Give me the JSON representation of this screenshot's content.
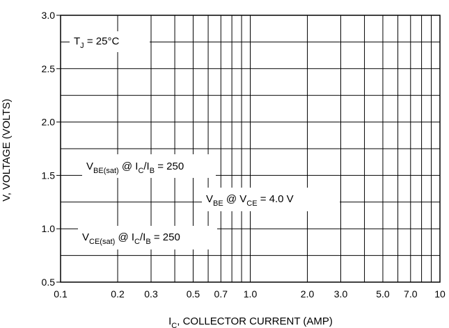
{
  "chart_data": {
    "type": "line",
    "title": "",
    "xscale": "log",
    "xlim": [
      0.1,
      10
    ],
    "ylim": [
      0.5,
      3.0
    ],
    "grid": true,
    "xlabel": {
      "main": "I",
      "sub": "C",
      "rest": ", COLLECTOR CURRENT (AMP)"
    },
    "ylabel": "V, VOLTAGE (VOLTS)",
    "x_tick_labels": [
      {
        "v": 0.1,
        "t": "0.1"
      },
      {
        "v": 0.2,
        "t": "0.2"
      },
      {
        "v": 0.3,
        "t": "0.3"
      },
      {
        "v": 0.5,
        "t": "0.5"
      },
      {
        "v": 0.7,
        "t": "0.7"
      },
      {
        "v": 1,
        "t": "1.0"
      },
      {
        "v": 2,
        "t": "2.0"
      },
      {
        "v": 3,
        "t": "3.0"
      },
      {
        "v": 5,
        "t": "5.0"
      },
      {
        "v": 7,
        "t": "7.0"
      },
      {
        "v": 10,
        "t": "10"
      }
    ],
    "y_tick_labels": [
      {
        "v": 0.5,
        "t": "0.5"
      },
      {
        "v": 1.0,
        "t": "1.0"
      },
      {
        "v": 1.5,
        "t": "1.5"
      },
      {
        "v": 2.0,
        "t": "2.0"
      },
      {
        "v": 2.5,
        "t": "2.5"
      },
      {
        "v": 3.0,
        "t": "3.0"
      }
    ],
    "annotations": {
      "tj": {
        "main": "T",
        "sub": "J",
        "rest": " = 25°C"
      },
      "vbe_sat": {
        "a": "V",
        "a_sub": "BE(sat)",
        "b": " @ I",
        "b_sub": "C",
        "c": "/I",
        "c_sub": "B",
        "d": " = 250"
      },
      "vbe_on": {
        "a": "V",
        "a_sub": "BE",
        "b": " @ V",
        "b_sub": "CE",
        "c": " = 4.0 V"
      },
      "vce_sat": {
        "a": "V",
        "a_sub": "CE(sat)",
        "b": " @ I",
        "b_sub": "C",
        "c": "/I",
        "c_sub": "B",
        "d": " = 250"
      }
    },
    "series": []
  }
}
